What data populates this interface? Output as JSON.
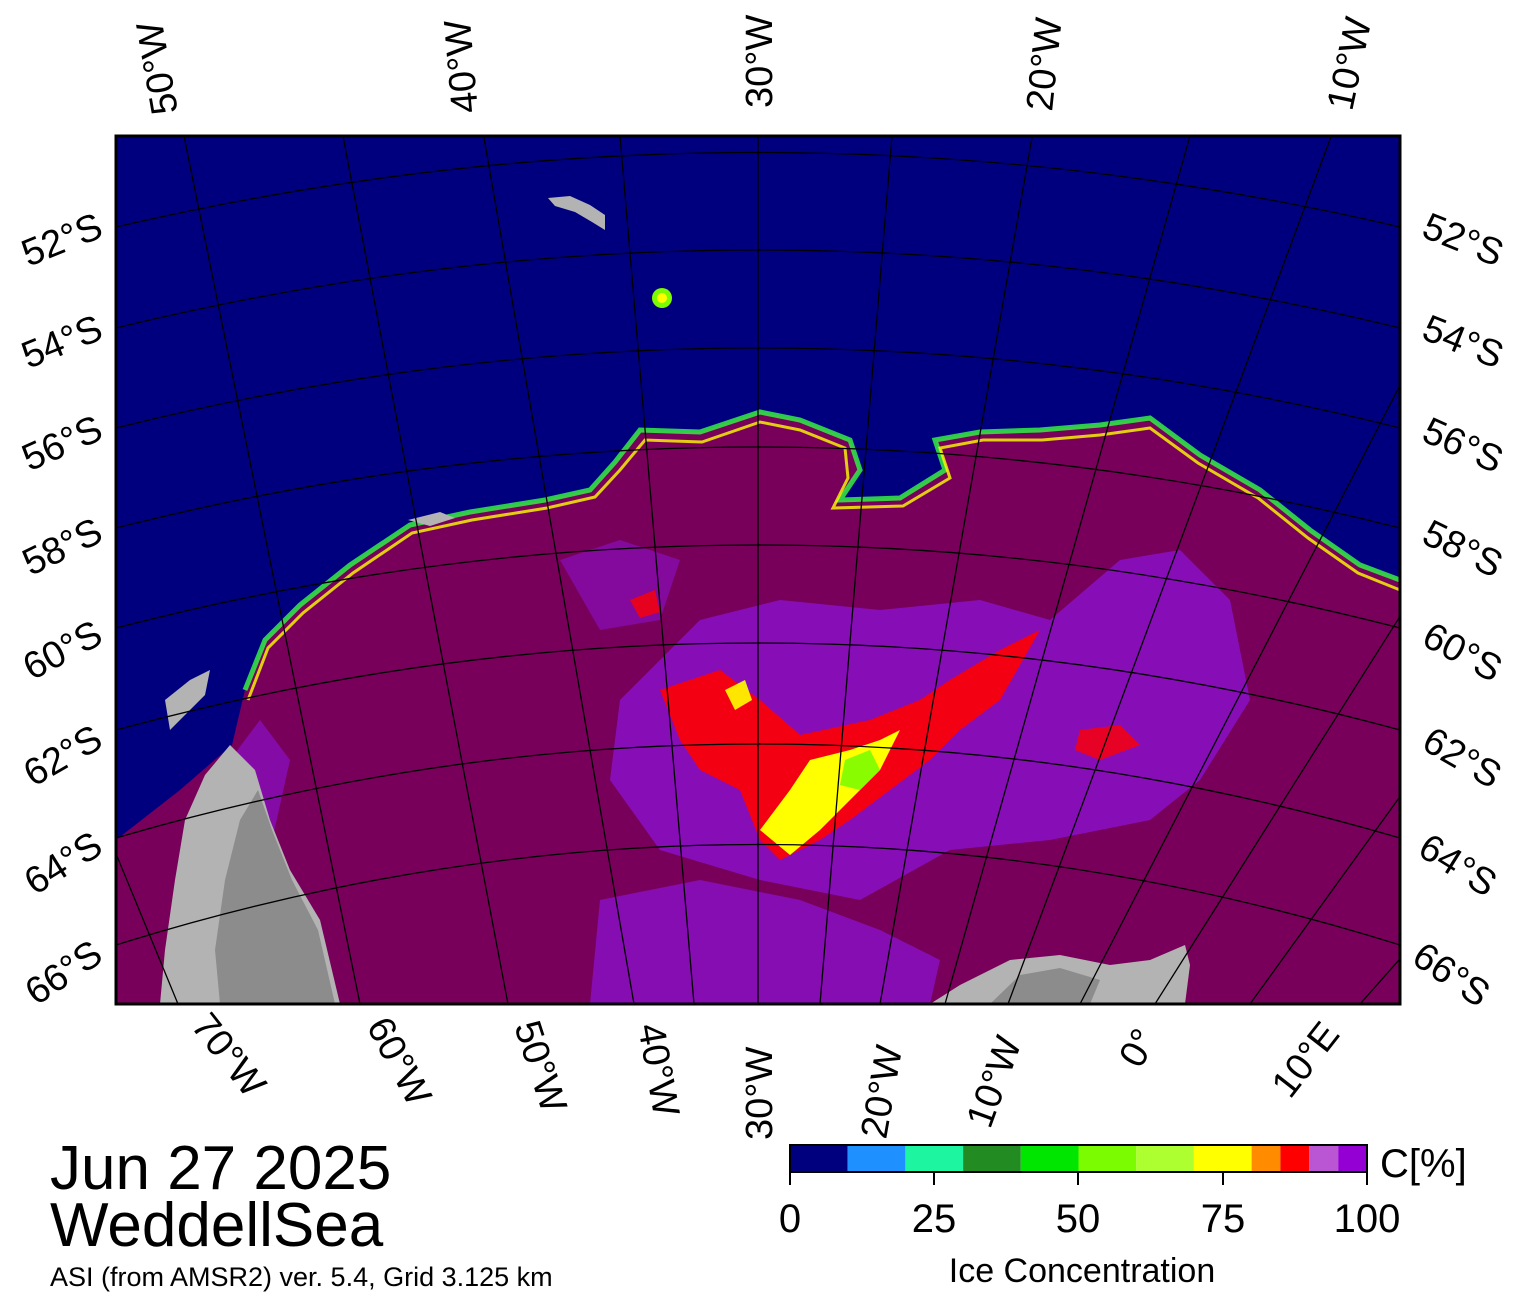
{
  "title": {
    "date": "Jun 27 2025",
    "region": "WeddellSea",
    "credit": "ASI (from AMSR2) ver. 5.4,  Grid 3.125 km"
  },
  "map": {
    "ocean_color": "#00007f",
    "land_color_light": "#b3b3b3",
    "land_color_dark": "#8c8c8c",
    "ice_full_color": "#78005a",
    "top_lon_labels": [
      "50°W",
      "40°W",
      "30°W",
      "20°W",
      "10°W"
    ],
    "bottom_lon_labels": [
      "70°W",
      "60°W",
      "50°W",
      "40°W",
      "30°W",
      "20°W",
      "10°W",
      "0°",
      "10°E"
    ],
    "left_lat_labels": [
      "52°S",
      "54°S",
      "56°S",
      "58°S",
      "60°S",
      "62°S",
      "64°S",
      "66°S"
    ],
    "right_lat_labels": [
      "52°S",
      "54°S",
      "56°S",
      "58°S",
      "60°S",
      "62°S",
      "64°S",
      "66°S"
    ]
  },
  "colorbar": {
    "unit": "C[%]",
    "label": "Ice Concentration",
    "ticks": [
      "0",
      "25",
      "50",
      "75",
      "100"
    ],
    "colors": [
      "#00007f",
      "#1e90ff",
      "#1ef5a0",
      "#228b22",
      "#00e600",
      "#7cfc00",
      "#adff2f",
      "#ffff00",
      "#ff8c00",
      "#ff0000",
      "#ba55d3",
      "#9400d3"
    ]
  }
}
